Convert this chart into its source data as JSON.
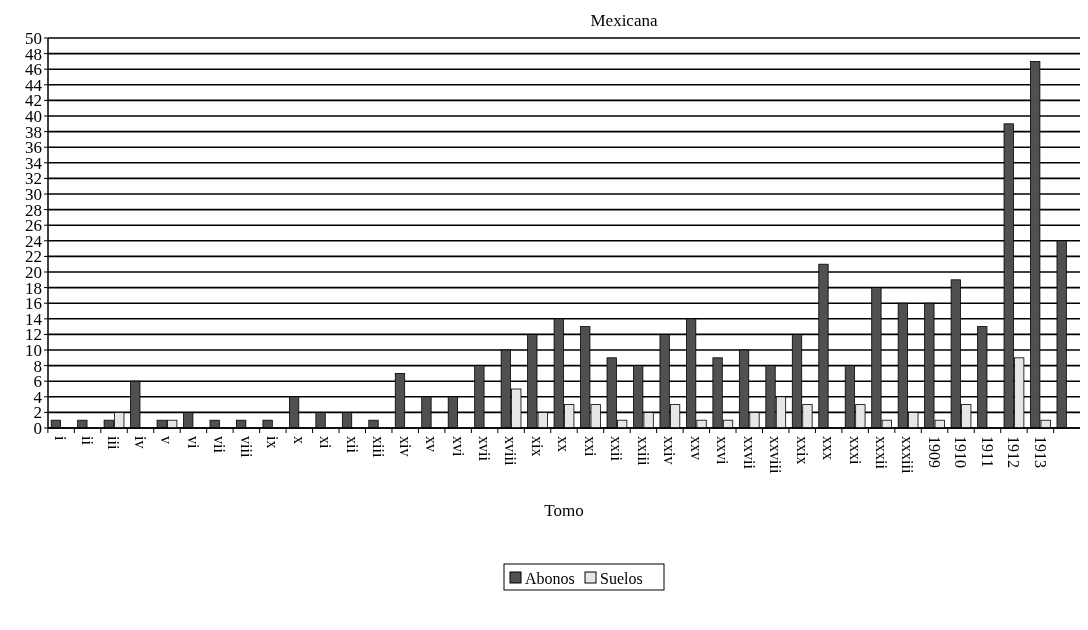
{
  "chart_data": {
    "type": "bar",
    "title": "Mexicana",
    "xlabel": "Tomo",
    "categories": [
      "i",
      "ii",
      "iii",
      "iv",
      "v",
      "vi",
      "vii",
      "viii",
      "ix",
      "x",
      "xi",
      "xii",
      "xiii",
      "xiv",
      "xv",
      "xvi",
      "xvii",
      "xviii",
      "xix",
      "xx",
      "xxi",
      "xxii",
      "xxiii",
      "xxiv",
      "xxv",
      "xxvi",
      "xxvii",
      "xxviii",
      "xxix",
      "xxx",
      "xxxi",
      "xxxii",
      "xxxiii",
      "1909",
      "1910",
      "1911",
      "1912",
      "1913",
      null
    ],
    "series": [
      {
        "name": "Abonos",
        "color": "#505050",
        "values": [
          1,
          1,
          1,
          6,
          1,
          2,
          1,
          1,
          1,
          4,
          2,
          2,
          1,
          7,
          4,
          4,
          8,
          10,
          12,
          14,
          13,
          9,
          8,
          12,
          14,
          9,
          10,
          8,
          12,
          21,
          8,
          18,
          16,
          16,
          19,
          13,
          39,
          47,
          24
        ]
      },
      {
        "name": "Suelos",
        "color": "#e6e6e6",
        "values": [
          0,
          0,
          2,
          0,
          1,
          0,
          0,
          0,
          0,
          0,
          0,
          0,
          0,
          0,
          0,
          0,
          0,
          5,
          2,
          3,
          3,
          1,
          2,
          3,
          1,
          1,
          2,
          4,
          3,
          0,
          3,
          1,
          2,
          1,
          3,
          0,
          9,
          1,
          null
        ]
      }
    ],
    "ylim": [
      0,
      50
    ],
    "yticks": [
      0,
      2,
      4,
      6,
      8,
      10,
      12,
      14,
      16,
      18,
      20,
      22,
      24,
      26,
      28,
      30,
      32,
      34,
      36,
      38,
      40,
      42,
      44,
      46,
      48,
      50
    ],
    "grid": "y",
    "legend": "bottom"
  }
}
